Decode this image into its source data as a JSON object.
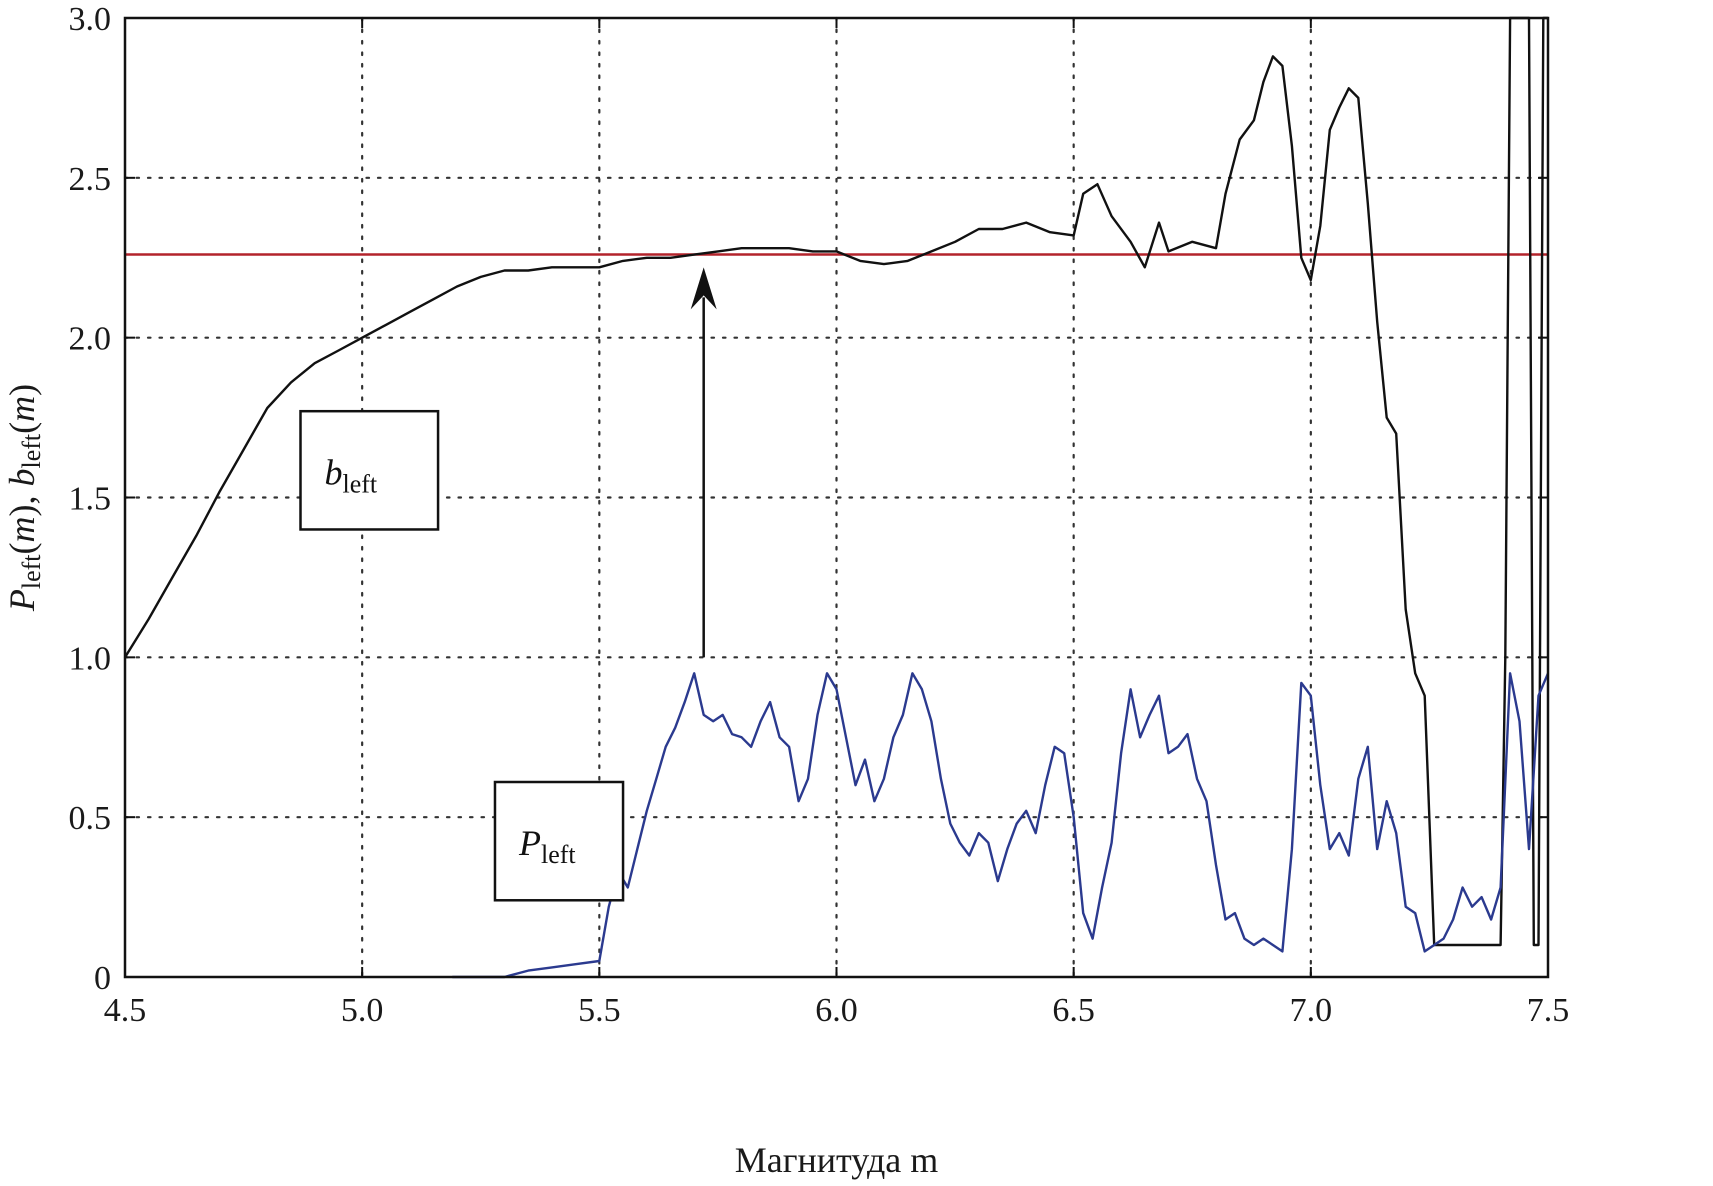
{
  "chart_data": {
    "type": "line",
    "title": "",
    "xlabel": "Магнитуда m",
    "ylabel": {
      "parts": [
        {
          "text": "P",
          "italic": true
        },
        {
          "text": "left",
          "sub": true
        },
        {
          "text": "(",
          "italic": false
        },
        {
          "text": "m",
          "italic": true
        },
        {
          "text": "), ",
          "italic": false
        },
        {
          "text": "b",
          "italic": true
        },
        {
          "text": "left",
          "sub": true
        },
        {
          "text": "(",
          "italic": false
        },
        {
          "text": "m",
          "italic": true
        },
        {
          "text": ")",
          "italic": false
        }
      ]
    },
    "xlim": [
      4.5,
      7.5
    ],
    "ylim": [
      0,
      3.0
    ],
    "x_ticks": [
      4.5,
      5.0,
      5.5,
      6.0,
      6.5,
      7.0,
      7.5
    ],
    "x_tick_labels": [
      "4.5",
      "5.0",
      "5.5",
      "6.0",
      "6.5",
      "7.0",
      "7.5"
    ],
    "y_ticks": [
      0,
      0.5,
      1.0,
      1.5,
      2.0,
      2.5,
      3.0
    ],
    "y_tick_labels": [
      "0",
      "0.5",
      "1.0",
      "1.5",
      "2.0",
      "2.5",
      "3.0"
    ],
    "grid": true,
    "grid_style": "dotted",
    "colors": {
      "b_series": "#111111",
      "p_series": "#2b3a8f",
      "reference": "#b3232b",
      "grid": "#333333",
      "frame": "#111111"
    },
    "reference_line": {
      "y": 2.26
    },
    "series": [
      {
        "key": "b_left",
        "x": [
          4.5,
          4.55,
          4.6,
          4.65,
          4.7,
          4.75,
          4.8,
          4.85,
          4.9,
          4.95,
          5.0,
          5.05,
          5.1,
          5.15,
          5.2,
          5.25,
          5.3,
          5.35,
          5.4,
          5.45,
          5.5,
          5.55,
          5.6,
          5.65,
          5.7,
          5.75,
          5.8,
          5.85,
          5.9,
          5.95,
          6.0,
          6.05,
          6.1,
          6.15,
          6.2,
          6.25,
          6.3,
          6.35,
          6.4,
          6.45,
          6.5,
          6.52,
          6.55,
          6.58,
          6.62,
          6.65,
          6.68,
          6.7,
          6.75,
          6.8,
          6.82,
          6.85,
          6.88,
          6.9,
          6.92,
          6.94,
          6.96,
          6.98,
          7.0,
          7.02,
          7.04,
          7.06,
          7.08,
          7.1,
          7.12,
          7.14,
          7.16,
          7.18,
          7.2,
          7.22,
          7.24,
          7.26,
          7.28,
          7.3,
          7.35,
          7.4,
          7.41,
          7.42,
          7.43,
          7.46,
          7.47,
          7.48,
          7.49,
          7.5
        ],
        "y": [
          1.0,
          1.12,
          1.25,
          1.38,
          1.52,
          1.65,
          1.78,
          1.86,
          1.92,
          1.96,
          2.0,
          2.04,
          2.08,
          2.12,
          2.16,
          2.19,
          2.21,
          2.21,
          2.22,
          2.22,
          2.22,
          2.24,
          2.25,
          2.25,
          2.26,
          2.27,
          2.28,
          2.28,
          2.28,
          2.27,
          2.27,
          2.24,
          2.23,
          2.24,
          2.27,
          2.3,
          2.34,
          2.34,
          2.36,
          2.33,
          2.32,
          2.45,
          2.48,
          2.38,
          2.3,
          2.22,
          2.36,
          2.27,
          2.3,
          2.28,
          2.45,
          2.62,
          2.68,
          2.8,
          2.88,
          2.85,
          2.6,
          2.25,
          2.18,
          2.35,
          2.65,
          2.72,
          2.78,
          2.75,
          2.42,
          2.05,
          1.75,
          1.7,
          1.15,
          0.95,
          0.88,
          0.1,
          0.1,
          0.1,
          0.1,
          0.1,
          1.0,
          3.0,
          3.0,
          3.0,
          0.1,
          0.1,
          3.0,
          3.0
        ]
      },
      {
        "key": "P_left",
        "x": [
          5.19,
          5.25,
          5.3,
          5.35,
          5.4,
          5.45,
          5.5,
          5.52,
          5.54,
          5.56,
          5.58,
          5.6,
          5.62,
          5.64,
          5.66,
          5.68,
          5.7,
          5.72,
          5.74,
          5.76,
          5.78,
          5.8,
          5.82,
          5.84,
          5.86,
          5.88,
          5.9,
          5.92,
          5.94,
          5.96,
          5.98,
          6.0,
          6.02,
          6.04,
          6.06,
          6.08,
          6.1,
          6.12,
          6.14,
          6.16,
          6.18,
          6.2,
          6.22,
          6.24,
          6.26,
          6.28,
          6.3,
          6.32,
          6.34,
          6.36,
          6.38,
          6.4,
          6.42,
          6.44,
          6.46,
          6.48,
          6.5,
          6.52,
          6.54,
          6.56,
          6.58,
          6.6,
          6.62,
          6.64,
          6.66,
          6.68,
          6.7,
          6.72,
          6.74,
          6.76,
          6.78,
          6.8,
          6.82,
          6.84,
          6.86,
          6.88,
          6.9,
          6.92,
          6.94,
          6.96,
          6.98,
          7.0,
          7.02,
          7.04,
          7.06,
          7.08,
          7.1,
          7.12,
          7.14,
          7.16,
          7.18,
          7.2,
          7.22,
          7.24,
          7.26,
          7.28,
          7.3,
          7.32,
          7.34,
          7.36,
          7.38,
          7.4,
          7.42,
          7.44,
          7.46,
          7.48,
          7.5
        ],
        "y": [
          0.0,
          0.0,
          0.0,
          0.02,
          0.03,
          0.04,
          0.05,
          0.22,
          0.33,
          0.28,
          0.4,
          0.52,
          0.62,
          0.72,
          0.78,
          0.86,
          0.95,
          0.82,
          0.8,
          0.82,
          0.76,
          0.75,
          0.72,
          0.8,
          0.86,
          0.75,
          0.72,
          0.55,
          0.62,
          0.82,
          0.95,
          0.9,
          0.75,
          0.6,
          0.68,
          0.55,
          0.62,
          0.75,
          0.82,
          0.95,
          0.9,
          0.8,
          0.62,
          0.48,
          0.42,
          0.38,
          0.45,
          0.42,
          0.3,
          0.4,
          0.48,
          0.52,
          0.45,
          0.6,
          0.72,
          0.7,
          0.5,
          0.2,
          0.12,
          0.28,
          0.42,
          0.7,
          0.9,
          0.75,
          0.82,
          0.88,
          0.7,
          0.72,
          0.76,
          0.62,
          0.55,
          0.35,
          0.18,
          0.2,
          0.12,
          0.1,
          0.12,
          0.1,
          0.08,
          0.4,
          0.92,
          0.88,
          0.6,
          0.4,
          0.45,
          0.38,
          0.62,
          0.72,
          0.4,
          0.55,
          0.45,
          0.22,
          0.2,
          0.08,
          0.1,
          0.12,
          0.18,
          0.28,
          0.22,
          0.25,
          0.18,
          0.28,
          0.95,
          0.8,
          0.4,
          0.88,
          0.95
        ]
      }
    ],
    "annotations": [
      {
        "key": "b_box",
        "base": "b",
        "sub": "left",
        "box_x": [
          4.87,
          5.16
        ],
        "box_y": [
          1.4,
          1.77
        ]
      },
      {
        "key": "p_box",
        "base": "P",
        "sub": "left",
        "box_x": [
          5.28,
          5.55
        ],
        "box_y": [
          0.24,
          0.61
        ]
      }
    ],
    "arrow": {
      "x": 5.72,
      "y_from": 1.0,
      "y_to": 2.22
    }
  }
}
